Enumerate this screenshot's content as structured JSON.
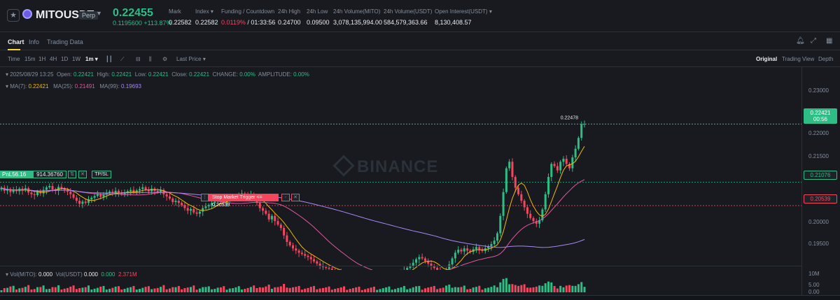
{
  "header": {
    "symbol": "MITOUSDT",
    "contract_type": "Perp",
    "last_price": "0.22455",
    "price_change": "0.1195600 +113.87%",
    "stats": [
      {
        "label": "Mark",
        "value": "0.22582"
      },
      {
        "label": "Index",
        "value": "0.22582"
      },
      {
        "label": "Funding / Countdown",
        "value_a": "0.0119%",
        "value_b": " / 01:33:56"
      },
      {
        "label": "24h High",
        "value": "0.24700"
      },
      {
        "label": "24h Low",
        "value": "0.09500"
      },
      {
        "label": "24h Volume(MITO)",
        "value": "3,078,135,994.00"
      },
      {
        "label": "24h Volume(USDT)",
        "value": "584,579,363.66"
      },
      {
        "label": "Open Interest(USDT)",
        "value": "8,130,408.57"
      }
    ]
  },
  "tabs": [
    "Chart",
    "Info",
    "Trading Data"
  ],
  "toolbar": {
    "intervals": [
      "Time",
      "15m",
      "1H",
      "4H",
      "1D",
      "1W",
      "1m"
    ],
    "price_source": "Last Price",
    "views": [
      "Original",
      "Trading View",
      "Depth"
    ]
  },
  "ohlc": {
    "datetime": "2025/08/29 13:25",
    "open_label": "Open:",
    "open": "0.22421",
    "high_label": "High:",
    "high": "0.22421",
    "low_label": "Low:",
    "low": "0.22421",
    "close_label": "Close:",
    "close": "0.22421",
    "change_label": "CHANGE:",
    "change": "0.00%",
    "amplitude_label": "AMPLITUDE:",
    "amplitude": "0.00%"
  },
  "ma": {
    "ma7_label": "MA(7):",
    "ma7": "0.22421",
    "ma25_label": "MA(25):",
    "ma25": "0.21491",
    "ma99_label": "MA(99):",
    "ma99": "0.19693"
  },
  "y_axis": {
    "ticks": [
      "0.23000",
      "0.22000",
      "0.21500",
      "0.20000",
      "0.19500"
    ],
    "current_price_tag": "0.22421",
    "countdown": "00:56",
    "position_tag": "0.21076",
    "stop_tag": "0.20539"
  },
  "chart_labels": {
    "high_marker": "0.22478",
    "watermark": "BINANCE"
  },
  "position": {
    "pnl": "PnL56.16",
    "quantity": "914.36760",
    "tpsl": "TP/SL",
    "stop_order": "Stop Market Trigger <= 0.20539"
  },
  "volume": {
    "mito_label": "Vol(MITO):",
    "mito": "0.000",
    "usdt_label": "Vol(USDT)",
    "usdt1": "0.000",
    "usdt2": "0.000",
    "usdt3": "2.371M",
    "axis": [
      "10M",
      "5.00",
      "0.00"
    ]
  },
  "colors": {
    "up": "#2ebd85",
    "down": "#f6465d",
    "ma7": "#f0b90b",
    "ma25": "#e056a0",
    "ma99": "#a987f3"
  },
  "chart_data": {
    "type": "candlestick",
    "title": "",
    "ylim": [
      0.1915,
      0.2325
    ],
    "current_price": 0.22421,
    "position_price": 0.21076,
    "stop_price": 0.20539,
    "candles_close": [
      0.2095,
      0.2088,
      0.2092,
      0.2085,
      0.2091,
      0.2087,
      0.2093,
      0.2089,
      0.2094,
      0.2084,
      0.208,
      0.2078,
      0.2086,
      0.2082,
      0.209,
      0.2096,
      0.2099,
      0.2091,
      0.2088,
      0.2097,
      0.2093,
      0.2089,
      0.2086,
      0.208,
      0.2072,
      0.2065,
      0.2058,
      0.2063,
      0.206,
      0.2068,
      0.2072,
      0.2076,
      0.208,
      0.2074,
      0.2079,
      0.2083,
      0.2086,
      0.2082,
      0.2088,
      0.2084,
      0.208,
      0.2083,
      0.2087,
      0.209,
      0.2085,
      0.2089,
      0.2092,
      0.2096,
      0.2091,
      0.2087,
      0.2093,
      0.2088,
      0.2085,
      0.209,
      0.208,
      0.2075,
      0.207,
      0.2062,
      0.2065,
      0.206,
      0.2055,
      0.2048,
      0.2042,
      0.2046,
      0.2038,
      0.2035,
      0.204,
      0.2048,
      0.2052,
      0.2055,
      0.206,
      0.2063,
      0.2068,
      0.2066,
      0.2062,
      0.2065,
      0.207,
      0.2072,
      0.2074,
      0.2078,
      0.2082,
      0.2079,
      0.2076,
      0.208,
      0.2072,
      0.206,
      0.2048,
      0.2042,
      0.2035,
      0.2022,
      0.203,
      0.2018,
      0.201,
      0.2002,
      0.1985,
      0.197,
      0.1962,
      0.1955,
      0.195,
      0.1945,
      0.1942,
      0.1938,
      0.1935,
      0.193,
      0.1925,
      0.192,
      0.1915,
      0.1912,
      0.191,
      0.1908,
      0.1905,
      0.1902,
      0.19,
      0.1898,
      0.1895,
      0.1893,
      0.189,
      0.1888,
      0.1886,
      0.1885,
      0.1884,
      0.1883,
      0.1882,
      0.1881,
      0.188,
      0.1882,
      0.1884,
      0.1886,
      0.1888,
      0.189,
      0.1893,
      0.1895,
      0.1898,
      0.19,
      0.1905,
      0.191,
      0.1915,
      0.1922,
      0.193,
      0.1935,
      0.1932,
      0.1926,
      0.192,
      0.1915,
      0.191,
      0.1904,
      0.1898,
      0.1893,
      0.1905,
      0.1918,
      0.1932,
      0.1945,
      0.1952,
      0.1948,
      0.1955,
      0.195,
      0.1947,
      0.1953,
      0.1958,
      0.1952,
      0.1949,
      0.1955,
      0.196,
      0.1965,
      0.1973,
      0.199,
      0.203,
      0.2085,
      0.214,
      0.2155,
      0.212,
      0.2095,
      0.208,
      0.2065,
      0.205,
      0.2035,
      0.2025,
      0.2018,
      0.2012,
      0.202,
      0.2045,
      0.208,
      0.212,
      0.215,
      0.2145,
      0.2135,
      0.2155,
      0.2162,
      0.215,
      0.214,
      0.2165,
      0.2185,
      0.221,
      0.2242,
      0.2242
    ],
    "volume_axis_max": 10000000
  }
}
